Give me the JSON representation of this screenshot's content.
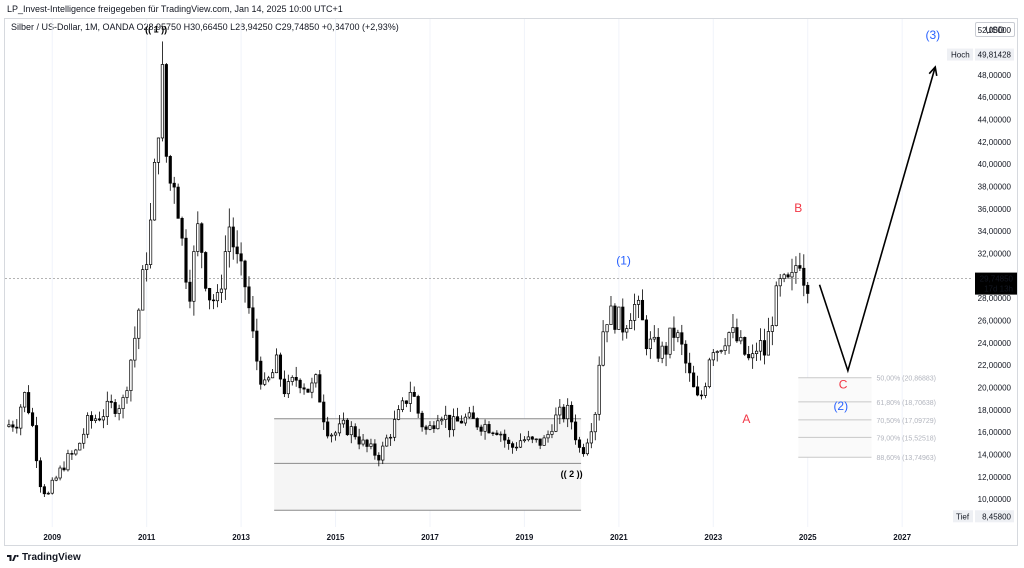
{
  "header": {
    "caption": "LP_Invest-Intelligence freigegeben für TradingView.com, Jan 14, 2025 10:00 UTC+1",
    "symbol_info": "Silber / US-Dollar, 1M, OANDA  O28,95750  H30,66450  L28,94250  C29,74850  +0,84700 (+2,93%)",
    "currency_button": "USD"
  },
  "price_labels": {
    "high_label": "Hoch",
    "high_value": "49,81428",
    "low_label": "Tief",
    "low_value": "8,45800",
    "current_value": "29,74850",
    "countdown": "17d 13h"
  },
  "branding": {
    "name": "TradingView"
  },
  "colors": {
    "candle_up": "#ffffff",
    "candle_down": "#000000",
    "candle_wick": "#000000",
    "wave_blue": "#2962ff",
    "wave_red": "#f23645",
    "wave_black": "#000000",
    "box_fill": "#f5f5f5",
    "fib_label": "#b2b5be",
    "current_price_bg": "#000000"
  },
  "chart_data": {
    "type": "candlestick",
    "title": "Silber / US-Dollar, 1M, OANDA",
    "y_ticks": [
      10,
      12,
      14,
      16,
      18,
      20,
      22,
      24,
      26,
      28,
      30,
      32,
      34,
      36,
      38,
      40,
      42,
      44,
      46,
      48,
      50,
      52
    ],
    "y_tick_labels": [
      "10,00000",
      "12,00000",
      "14,00000",
      "16,00000",
      "18,00000",
      "20,00000",
      "22,00000",
      "24,00000",
      "26,00000",
      "28,00000",
      "30,00000",
      "32,00000",
      "34,00000",
      "36,00000",
      "38,00000",
      "40,00000",
      "42,00000",
      "44,00000",
      "46,00000",
      "48,00000",
      "50,00000",
      "52,00000"
    ],
    "x_ticks": [
      "2009",
      "2011",
      "2013",
      "2015",
      "2017",
      "2019",
      "2021",
      "2023",
      "2025",
      "2027"
    ],
    "ylim": [
      7.5,
      53
    ],
    "xlim": [
      2008.0,
      2028.5
    ],
    "current_price": 29.7485,
    "high": 49.81428,
    "low": 8.458,
    "anchor_points": [
      [
        2008.0,
        16.5
      ],
      [
        2008.25,
        17.0
      ],
      [
        2008.4,
        19.5
      ],
      [
        2008.55,
        17.5
      ],
      [
        2008.75,
        11.5
      ],
      [
        2008.9,
        10.2
      ],
      [
        2009.0,
        11.2
      ],
      [
        2009.3,
        13.5
      ],
      [
        2009.5,
        14.2
      ],
      [
        2009.75,
        16.8
      ],
      [
        2010.0,
        17.5
      ],
      [
        2010.3,
        18.4
      ],
      [
        2010.5,
        18.7
      ],
      [
        2010.75,
        24.5
      ],
      [
        2010.95,
        30.5
      ],
      [
        2011.1,
        35.0
      ],
      [
        2011.25,
        44.0
      ],
      [
        2011.32,
        48.6
      ],
      [
        2011.45,
        38.0
      ],
      [
        2011.6,
        39.0
      ],
      [
        2011.75,
        33.0
      ],
      [
        2011.9,
        28.5
      ],
      [
        2012.1,
        34.5
      ],
      [
        2012.3,
        28.5
      ],
      [
        2012.5,
        27.5
      ],
      [
        2012.75,
        34.5
      ],
      [
        2012.95,
        30.5
      ],
      [
        2013.1,
        29.0
      ],
      [
        2013.3,
        23.0
      ],
      [
        2013.5,
        19.8
      ],
      [
        2013.75,
        22.0
      ],
      [
        2013.95,
        19.5
      ],
      [
        2014.2,
        21.0
      ],
      [
        2014.45,
        19.7
      ],
      [
        2014.6,
        20.5
      ],
      [
        2014.8,
        16.5
      ],
      [
        2014.95,
        15.8
      ],
      [
        2015.2,
        16.5
      ],
      [
        2015.4,
        16.0
      ],
      [
        2015.6,
        14.8
      ],
      [
        2015.8,
        14.2
      ],
      [
        2015.95,
        13.9
      ],
      [
        2016.1,
        15.5
      ],
      [
        2016.4,
        18.0
      ],
      [
        2016.6,
        20.0
      ],
      [
        2016.8,
        17.0
      ],
      [
        2016.95,
        15.9
      ],
      [
        2017.2,
        18.1
      ],
      [
        2017.45,
        16.5
      ],
      [
        2017.7,
        17.2
      ],
      [
        2017.95,
        16.9
      ],
      [
        2018.2,
        16.6
      ],
      [
        2018.45,
        16.3
      ],
      [
        2018.7,
        14.5
      ],
      [
        2018.95,
        15.4
      ],
      [
        2019.2,
        15.0
      ],
      [
        2019.45,
        15.2
      ],
      [
        2019.6,
        17.0
      ],
      [
        2019.75,
        17.5
      ],
      [
        2019.95,
        17.8
      ],
      [
        2020.2,
        14.0
      ],
      [
        2020.35,
        15.8
      ],
      [
        2020.5,
        18.0
      ],
      [
        2020.62,
        24.5
      ],
      [
        2020.75,
        26.5
      ],
      [
        2020.95,
        26.3
      ],
      [
        2021.1,
        25.5
      ],
      [
        2021.3,
        27.5
      ],
      [
        2021.45,
        26.5
      ],
      [
        2021.6,
        24.0
      ],
      [
        2021.75,
        23.5
      ],
      [
        2021.95,
        23.0
      ],
      [
        2022.15,
        25.0
      ],
      [
        2022.3,
        24.0
      ],
      [
        2022.45,
        21.5
      ],
      [
        2022.6,
        19.5
      ],
      [
        2022.7,
        18.5
      ],
      [
        2022.85,
        21.0
      ],
      [
        2022.95,
        24.0
      ],
      [
        2023.1,
        23.5
      ],
      [
        2023.3,
        25.0
      ],
      [
        2023.45,
        24.5
      ],
      [
        2023.6,
        23.5
      ],
      [
        2023.8,
        22.0
      ],
      [
        2023.95,
        24.0
      ],
      [
        2024.1,
        23.0
      ],
      [
        2024.25,
        26.5
      ],
      [
        2024.4,
        29.0
      ],
      [
        2024.55,
        29.0
      ],
      [
        2024.7,
        29.5
      ],
      [
        2024.8,
        32.5
      ],
      [
        2024.9,
        30.5
      ],
      [
        2024.97,
        29.0
      ],
      [
        2025.0,
        29.7485
      ]
    ],
    "demand_zone": {
      "x_range": [
        2013.7,
        2020.2
      ],
      "y_range": [
        9.0,
        17.2
      ],
      "midline": 13.2
    },
    "fib_levels": [
      {
        "label": "50,00% (20,86883)",
        "price": 20.86883
      },
      {
        "label": "61,80% (18,70638)",
        "price": 18.70638
      },
      {
        "label": "70,50% (17,09729)",
        "price": 17.09729
      },
      {
        "label": "79,00% (15,52518)",
        "price": 15.52518
      },
      {
        "label": "88,60% (13,74963)",
        "price": 13.74963
      }
    ],
    "fib_x_range": [
      2024.8,
      2026.35
    ],
    "projection_path": [
      [
        2025.25,
        29.2
      ],
      [
        2025.85,
        21.5
      ],
      [
        2027.7,
        48.7
      ]
    ],
    "wave_labels": [
      {
        "text": "(( 1 ))",
        "x": 2011.2,
        "price": 51.8,
        "color": "black"
      },
      {
        "text": "(( 2 ))",
        "x": 2020.0,
        "price": 12.0,
        "color": "black"
      },
      {
        "text": "(1)",
        "x": 2021.1,
        "price": 31.0,
        "color": "blue"
      },
      {
        "text": "(2)",
        "x": 2025.7,
        "price": 18.0,
        "color": "blue"
      },
      {
        "text": "(3)",
        "x": 2027.65,
        "price": 51.2,
        "color": "blue"
      },
      {
        "text": "A",
        "x": 2023.7,
        "price": 16.8,
        "color": "red"
      },
      {
        "text": "B",
        "x": 2024.8,
        "price": 35.7,
        "color": "red"
      },
      {
        "text": "C",
        "x": 2025.75,
        "price": 19.9,
        "color": "red"
      }
    ]
  }
}
